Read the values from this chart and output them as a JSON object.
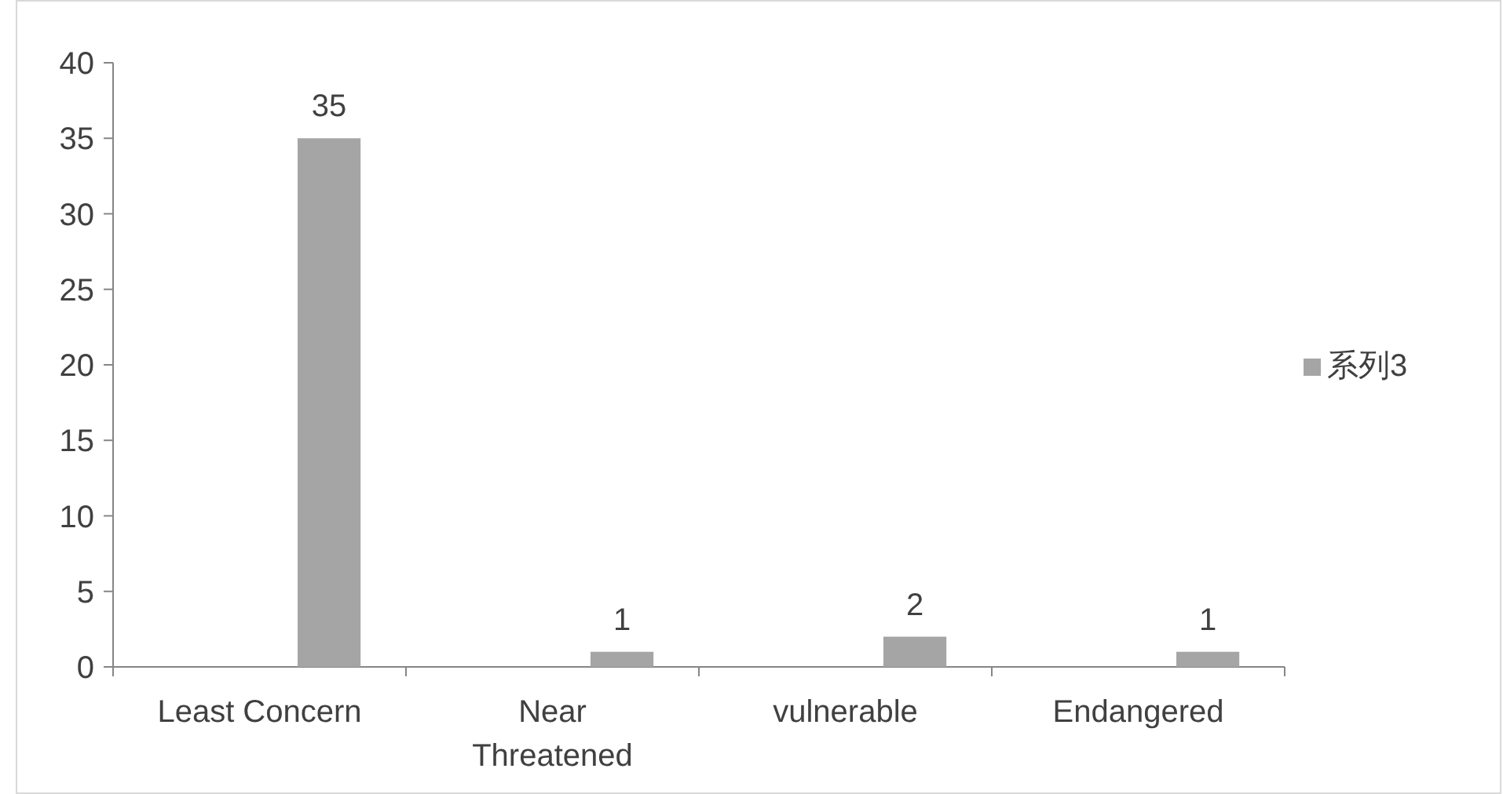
{
  "chart_data": {
    "type": "bar",
    "categories": [
      "Least Concern",
      "Near Threatened",
      "vulnerable",
      "Endangered"
    ],
    "series": [
      {
        "name": "系列3",
        "color": "#a5a5a5",
        "values": [
          35,
          1,
          2,
          1
        ]
      }
    ],
    "ylim": [
      0,
      40
    ],
    "yticks": [
      0,
      5,
      10,
      15,
      20,
      25,
      30,
      35,
      40
    ],
    "grid": false,
    "legend": "right",
    "data_labels": true
  }
}
